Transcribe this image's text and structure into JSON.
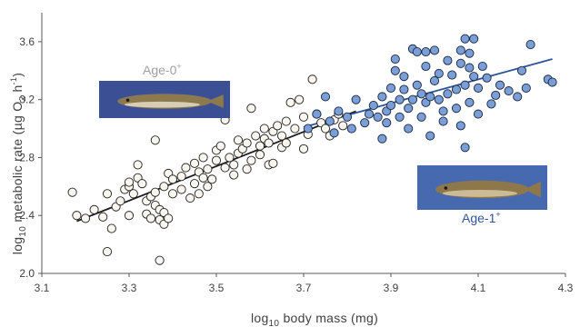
{
  "chart_data": {
    "type": "scatter",
    "xlabel": {
      "prefix": "log",
      "sub": "10",
      "rest": " body mass  (mg)"
    },
    "ylabel": {
      "prefix": "log",
      "sub": "10",
      "mid": " metabolic rate  (µg O",
      "sub2": "2",
      "mid2": " h",
      "sup": "-1",
      "end": ")"
    },
    "xlim": [
      3.1,
      4.3
    ],
    "ylim": [
      2.0,
      3.8
    ],
    "x_ticks": [
      "3.1",
      "3.3",
      "3.5",
      "3.7",
      "3.9",
      "4.1",
      "4.3"
    ],
    "y_ticks": [
      "2.0",
      "2.4",
      "2.8",
      "3.2",
      "3.6"
    ],
    "grid": false,
    "series": [
      {
        "name": "Age-0⁺",
        "label": "Age-0",
        "label_sup": "+",
        "marker_fill": "#f8f6ee",
        "marker_edge": "#202020",
        "label_color": "#a0a0a0",
        "fit_color": "#1a1a1a",
        "fit": {
          "x": [
            3.18,
            3.82
          ],
          "y": [
            2.36,
            3.12
          ]
        },
        "points": [
          [
            3.17,
            2.56
          ],
          [
            3.18,
            2.4
          ],
          [
            3.2,
            2.38
          ],
          [
            3.22,
            2.44
          ],
          [
            3.24,
            2.39
          ],
          [
            3.25,
            2.15
          ],
          [
            3.25,
            2.55
          ],
          [
            3.26,
            2.31
          ],
          [
            3.27,
            2.46
          ],
          [
            3.28,
            2.5
          ],
          [
            3.29,
            2.58
          ],
          [
            3.3,
            2.6
          ],
          [
            3.3,
            2.63
          ],
          [
            3.3,
            2.4
          ],
          [
            3.31,
            2.55
          ],
          [
            3.32,
            2.66
          ],
          [
            3.32,
            2.75
          ],
          [
            3.33,
            2.62
          ],
          [
            3.34,
            2.5
          ],
          [
            3.34,
            2.41
          ],
          [
            3.35,
            2.53
          ],
          [
            3.35,
            2.38
          ],
          [
            3.36,
            2.56
          ],
          [
            3.36,
            2.47
          ],
          [
            3.36,
            2.92
          ],
          [
            3.37,
            2.44
          ],
          [
            3.37,
            2.37
          ],
          [
            3.37,
            2.09
          ],
          [
            3.38,
            2.6
          ],
          [
            3.38,
            2.42
          ],
          [
            3.38,
            2.34
          ],
          [
            3.39,
            2.69
          ],
          [
            3.39,
            2.38
          ],
          [
            3.4,
            2.65
          ],
          [
            3.4,
            2.55
          ],
          [
            3.42,
            2.67
          ],
          [
            3.42,
            2.58
          ],
          [
            3.43,
            2.73
          ],
          [
            3.44,
            2.52
          ],
          [
            3.45,
            2.62
          ],
          [
            3.45,
            2.76
          ],
          [
            3.46,
            2.7
          ],
          [
            3.46,
            2.55
          ],
          [
            3.47,
            2.8
          ],
          [
            3.47,
            2.66
          ],
          [
            3.48,
            2.72
          ],
          [
            3.48,
            2.6
          ],
          [
            3.49,
            2.65
          ],
          [
            3.5,
            2.78
          ],
          [
            3.5,
            2.85
          ],
          [
            3.51,
            2.88
          ],
          [
            3.52,
            2.73
          ],
          [
            3.52,
            3.06
          ],
          [
            3.53,
            2.8
          ],
          [
            3.54,
            2.75
          ],
          [
            3.54,
            2.68
          ],
          [
            3.55,
            2.92
          ],
          [
            3.55,
            2.83
          ],
          [
            3.56,
            2.86
          ],
          [
            3.57,
            2.9
          ],
          [
            3.57,
            2.72
          ],
          [
            3.58,
            3.14
          ],
          [
            3.58,
            2.78
          ],
          [
            3.59,
            2.95
          ],
          [
            3.6,
            2.88
          ],
          [
            3.6,
            2.82
          ],
          [
            3.61,
            2.93
          ],
          [
            3.61,
            3.0
          ],
          [
            3.62,
            2.75
          ],
          [
            3.62,
            2.9
          ],
          [
            3.63,
            2.98
          ],
          [
            3.63,
            2.76
          ],
          [
            3.64,
            3.02
          ],
          [
            3.65,
            2.95
          ],
          [
            3.65,
            2.87
          ],
          [
            3.66,
            2.9
          ],
          [
            3.66,
            3.05
          ],
          [
            3.67,
            3.18
          ],
          [
            3.68,
            3.0
          ],
          [
            3.69,
            3.2
          ],
          [
            3.7,
            2.86
          ],
          [
            3.7,
            3.08
          ],
          [
            3.71,
            2.96
          ],
          [
            3.72,
            3.34
          ],
          [
            3.73,
            3.1
          ],
          [
            3.74,
            3.04
          ],
          [
            3.75,
            3.0
          ],
          [
            3.76,
            2.95
          ],
          [
            3.77,
            3.06
          ],
          [
            3.78,
            3.1
          ],
          [
            3.79,
            3.02
          ]
        ]
      },
      {
        "name": "Age-1⁺",
        "label": "Age-1",
        "label_sup": "+",
        "marker_fill": "#7a9fd6",
        "marker_edge": "#1a2440",
        "label_color": "#2f5597",
        "fit_color": "#2f5597",
        "fit": {
          "x": [
            3.7,
            4.27
          ],
          "y": [
            3.01,
            3.48
          ]
        },
        "points": [
          [
            3.71,
            3.0
          ],
          [
            3.73,
            3.1
          ],
          [
            3.75,
            3.22
          ],
          [
            3.76,
            3.05
          ],
          [
            3.77,
            2.97
          ],
          [
            3.78,
            3.12
          ],
          [
            3.8,
            3.08
          ],
          [
            3.81,
            3.0
          ],
          [
            3.82,
            3.2
          ],
          [
            3.84,
            3.04
          ],
          [
            3.85,
            3.1
          ],
          [
            3.86,
            3.16
          ],
          [
            3.87,
            3.08
          ],
          [
            3.88,
            2.93
          ],
          [
            3.88,
            3.22
          ],
          [
            3.89,
            3.04
          ],
          [
            3.89,
            3.12
          ],
          [
            3.9,
            3.28
          ],
          [
            3.9,
            3.16
          ],
          [
            3.91,
            3.48
          ],
          [
            3.91,
            3.4
          ],
          [
            3.92,
            3.08
          ],
          [
            3.92,
            3.2
          ],
          [
            3.93,
            3.36
          ],
          [
            3.93,
            3.27
          ],
          [
            3.94,
            3.0
          ],
          [
            3.94,
            3.14
          ],
          [
            3.95,
            3.55
          ],
          [
            3.95,
            3.2
          ],
          [
            3.96,
            3.3
          ],
          [
            3.96,
            3.53
          ],
          [
            3.97,
            3.24
          ],
          [
            3.97,
            3.08
          ],
          [
            3.98,
            3.53
          ],
          [
            3.98,
            3.43
          ],
          [
            3.98,
            3.18
          ],
          [
            3.99,
            2.95
          ],
          [
            3.99,
            3.22
          ],
          [
            4.0,
            3.54
          ],
          [
            4.0,
            3.33
          ],
          [
            4.01,
            3.38
          ],
          [
            4.01,
            3.2
          ],
          [
            4.02,
            3.12
          ],
          [
            4.02,
            3.05
          ],
          [
            4.03,
            3.47
          ],
          [
            4.03,
            3.24
          ],
          [
            4.04,
            3.37
          ],
          [
            4.05,
            3.27
          ],
          [
            4.05,
            3.14
          ],
          [
            4.06,
            3.45
          ],
          [
            4.06,
            3.02
          ],
          [
            4.06,
            3.54
          ],
          [
            4.07,
            3.62
          ],
          [
            4.07,
            2.87
          ],
          [
            4.07,
            3.3
          ],
          [
            4.08,
            3.52
          ],
          [
            4.08,
            3.18
          ],
          [
            4.08,
            3.42
          ],
          [
            4.09,
            3.62
          ],
          [
            4.09,
            3.36
          ],
          [
            4.1,
            3.28
          ],
          [
            4.1,
            3.1
          ],
          [
            4.11,
            3.43
          ],
          [
            4.12,
            3.35
          ],
          [
            4.13,
            3.17
          ],
          [
            4.14,
            3.23
          ],
          [
            4.15,
            3.3
          ],
          [
            4.17,
            3.26
          ],
          [
            4.19,
            3.22
          ],
          [
            4.2,
            3.4
          ],
          [
            4.21,
            3.28
          ],
          [
            4.22,
            3.58
          ],
          [
            4.26,
            3.34
          ],
          [
            4.27,
            3.32
          ]
        ]
      }
    ]
  },
  "photos": {
    "age0": {
      "bg": "#3a4f94",
      "body": "#8c7a4e",
      "belly": "#e5dcc4"
    },
    "age1": {
      "bg": "#4669b0",
      "body": "#8e7849",
      "belly": "#d7c7a4"
    }
  }
}
